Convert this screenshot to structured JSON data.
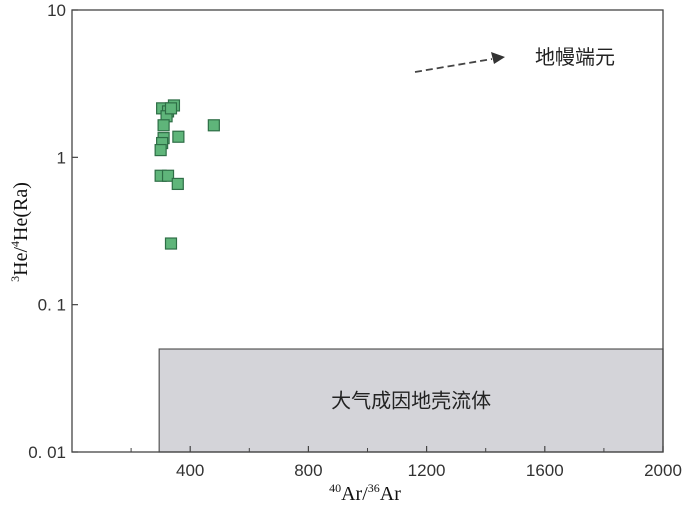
{
  "chart_data": {
    "type": "scatter",
    "x_axis": {
      "label_base": "Ar/",
      "label_sup1": "40",
      "label_sup2": "36",
      "label_tail": "Ar",
      "scale": "linear",
      "range": [
        0,
        2000
      ],
      "ticks": [
        400,
        800,
        1200,
        1600,
        2000
      ],
      "tick_labels": [
        "400",
        "800",
        "1200",
        "1600",
        "2000"
      ]
    },
    "y_axis": {
      "label_sup1": "3",
      "label_mid": "He/",
      "label_sup2": "4",
      "label_tail": "He(Ra)",
      "scale": "log",
      "range": [
        0.01,
        10
      ],
      "ticks": [
        0.01,
        0.1,
        1,
        10
      ],
      "tick_labels": [
        "0. 01",
        "0. 1",
        "1",
        "10"
      ]
    },
    "points": [
      {
        "x": 305,
        "y": 2.15
      },
      {
        "x": 325,
        "y": 2.05
      },
      {
        "x": 345,
        "y": 2.25
      },
      {
        "x": 320,
        "y": 1.9
      },
      {
        "x": 335,
        "y": 2.15
      },
      {
        "x": 310,
        "y": 1.65
      },
      {
        "x": 310,
        "y": 1.35
      },
      {
        "x": 305,
        "y": 1.25
      },
      {
        "x": 300,
        "y": 1.12
      },
      {
        "x": 360,
        "y": 1.38
      },
      {
        "x": 300,
        "y": 0.75
      },
      {
        "x": 325,
        "y": 0.75
      },
      {
        "x": 358,
        "y": 0.66
      },
      {
        "x": 335,
        "y": 0.26
      },
      {
        "x": 480,
        "y": 1.65
      }
    ],
    "region": {
      "label": "大气成因地壳流体",
      "x_range": [
        295,
        2000
      ],
      "y_range": [
        0.01,
        0.05
      ],
      "fill": "#d4d4d9"
    },
    "annotation": {
      "text": "地幔端元",
      "arrow": "dashed"
    },
    "marker_color": "#5fb57a",
    "marker_edge": "#2e6e46",
    "grid": false
  }
}
